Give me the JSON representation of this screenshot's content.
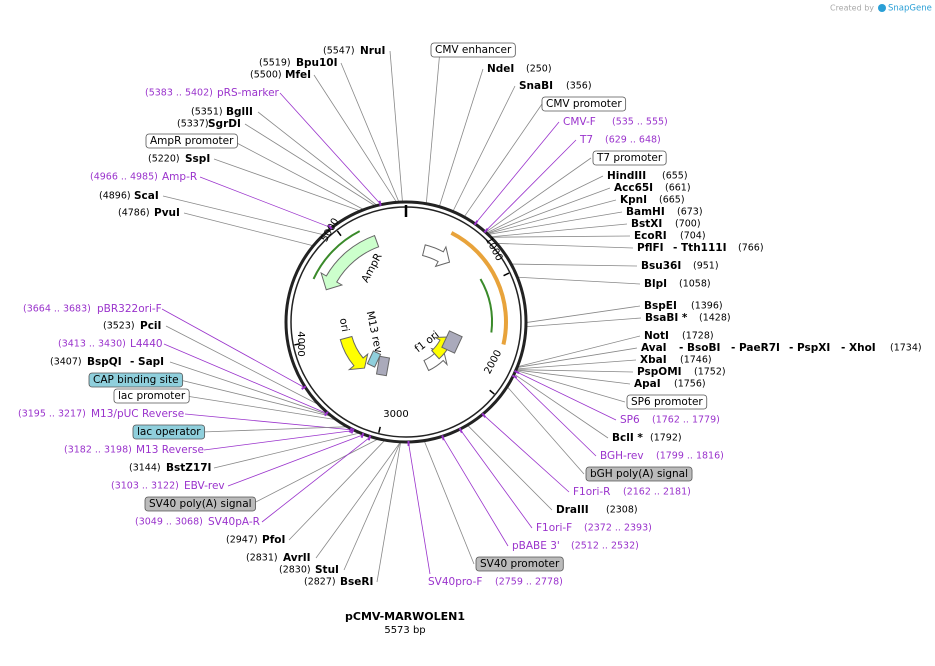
{
  "credit": {
    "prefix": "Created by",
    "brand": "SnapGene"
  },
  "map": {
    "name": "pCMV-MARWOLEN1",
    "length": "5573 bp",
    "ticks": [
      "1000",
      "2000",
      "3000",
      "4000",
      "5000"
    ],
    "inner_features": [
      "AmpR",
      "M13 rev",
      "ori",
      "f1 ori"
    ]
  },
  "labels": [
    {
      "name": "NruI",
      "coord": "(5547)"
    },
    {
      "name": "Bpu10I",
      "coord": "(5519)"
    },
    {
      "name": "MfeI",
      "coord": "(5500)"
    },
    {
      "name": "pRS-marker",
      "coord": "(5383 .. 5402)"
    },
    {
      "name": "BglII",
      "coord": "(5351)"
    },
    {
      "name": "SgrDI",
      "coord": "(5337)"
    },
    {
      "name": "AmpR promoter"
    },
    {
      "name": "SspI",
      "coord": "(5220)"
    },
    {
      "name": "Amp-R",
      "coord": "(4966 .. 4985)"
    },
    {
      "name": "ScaI",
      "coord": "(4896)"
    },
    {
      "name": "PvuI",
      "coord": "(4786)"
    },
    {
      "name": "CMV enhancer"
    },
    {
      "name": "NdeI",
      "coord": "(250)"
    },
    {
      "name": "SnaBI",
      "coord": "(356)"
    },
    {
      "name": "CMV promoter"
    },
    {
      "name": "CMV-F",
      "coord": "(535 .. 555)"
    },
    {
      "name": "T7",
      "coord": "(629 .. 648)"
    },
    {
      "name": "T7 promoter"
    },
    {
      "name": "HindIII",
      "coord": "(655)"
    },
    {
      "name": "Acc65I",
      "coord": "(661)"
    },
    {
      "name": "KpnI",
      "coord": "(665)"
    },
    {
      "name": "BamHI",
      "coord": "(673)"
    },
    {
      "name": "BstXI",
      "coord": "(700)"
    },
    {
      "name": "EcoRI",
      "coord": "(704)"
    },
    {
      "name": "PflFI",
      "aliases": [
        "- Tth111I"
      ],
      "coord": "(766)"
    },
    {
      "name": "Bsu36I",
      "coord": "(951)"
    },
    {
      "name": "BlpI",
      "coord": "(1058)"
    },
    {
      "name": "BspEI",
      "coord": "(1396)"
    },
    {
      "name": "BsaBI *",
      "coord": "(1428)"
    },
    {
      "name": "NotI",
      "coord": "(1728)"
    },
    {
      "name": "AvaI",
      "aliases": [
        "- BsoBI",
        "- PaeR7I",
        "- PspXI",
        "- XhoI"
      ],
      "coord": "(1734)"
    },
    {
      "name": "XbaI",
      "coord": "(1746)"
    },
    {
      "name": "PspOMI",
      "coord": "(1752)"
    },
    {
      "name": "ApaI",
      "coord": "(1756)"
    },
    {
      "name": "SP6 promoter"
    },
    {
      "name": "SP6",
      "coord": "(1762 .. 1779)"
    },
    {
      "name": "BclI *",
      "coord": "(1792)"
    },
    {
      "name": "BGH-rev",
      "coord": "(1799 .. 1816)"
    },
    {
      "name": "bGH poly(A) signal"
    },
    {
      "name": "F1ori-R",
      "coord": "(2162 .. 2181)"
    },
    {
      "name": "DraIII",
      "coord": "(2308)"
    },
    {
      "name": "F1ori-F",
      "coord": "(2372 .. 2393)"
    },
    {
      "name": "pBABE 3'",
      "coord": "(2512 .. 2532)"
    },
    {
      "name": "SV40 promoter"
    },
    {
      "name": "SV40pro-F",
      "coord": "(2759 .. 2778)"
    },
    {
      "name": "pBR322ori-F",
      "coord": "(3664 .. 3683)"
    },
    {
      "name": "PciI",
      "coord": "(3523)"
    },
    {
      "name": "L4440",
      "coord": "(3413 .. 3430)"
    },
    {
      "name": "BspQI",
      "aliases": [
        "- SapI"
      ],
      "coord": "(3407)"
    },
    {
      "name": "CAP binding site"
    },
    {
      "name": "lac promoter"
    },
    {
      "name": "M13/pUC Reverse",
      "coord": "(3195 .. 3217)"
    },
    {
      "name": "lac operator"
    },
    {
      "name": "M13 Reverse",
      "coord": "(3182 .. 3198)"
    },
    {
      "name": "BstZ17I",
      "coord": "(3144)"
    },
    {
      "name": "EBV-rev",
      "coord": "(3103 .. 3122)"
    },
    {
      "name": "SV40 poly(A) signal"
    },
    {
      "name": "SV40pA-R",
      "coord": "(3049 .. 3068)"
    },
    {
      "name": "PfoI",
      "coord": "(2947)"
    },
    {
      "name": "AvrII",
      "coord": "(2831)"
    },
    {
      "name": "StuI",
      "coord": "(2830)"
    },
    {
      "name": "BseRI",
      "coord": "(2827)"
    }
  ]
}
